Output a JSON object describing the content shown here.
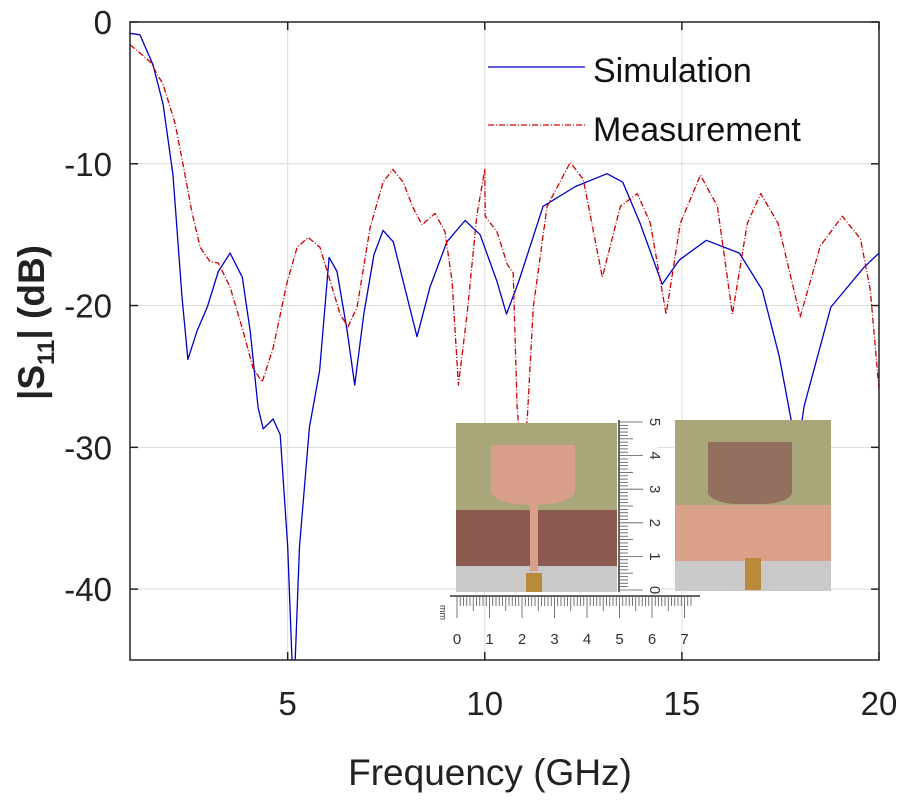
{
  "chart_data": {
    "type": "line",
    "title": "",
    "xlabel": "Frequency (GHz)",
    "ylabel_main": "|S",
    "ylabel_sub": "11",
    "ylabel_tail": "| (dB)",
    "xlim": [
      1,
      20
    ],
    "ylim": [
      -45,
      0
    ],
    "xticks": [
      5,
      10,
      15,
      20
    ],
    "yticks": [
      0,
      -10,
      -20,
      -30,
      -40
    ],
    "grid": true,
    "legend_position": "top-right",
    "series": [
      {
        "name": "Simulation",
        "color": "#0000c8",
        "style": "solid",
        "points": [
          [
            1,
            -0.8
          ],
          [
            1.25,
            -0.9
          ],
          [
            1.58,
            -3
          ],
          [
            1.84,
            -5.8
          ],
          [
            2.09,
            -10.8
          ],
          [
            2.32,
            -19.4
          ],
          [
            2.47,
            -23.8
          ],
          [
            2.7,
            -21.8
          ],
          [
            2.96,
            -20.1
          ],
          [
            3.24,
            -17.6
          ],
          [
            3.54,
            -16.3
          ],
          [
            3.85,
            -18
          ],
          [
            4.05,
            -21.8
          ],
          [
            4.25,
            -27.2
          ],
          [
            4.38,
            -28.7
          ],
          [
            4.63,
            -28
          ],
          [
            4.81,
            -29.1
          ],
          [
            5.0,
            -37
          ],
          [
            5.15,
            -48
          ],
          [
            5.3,
            -37
          ],
          [
            5.55,
            -28.6
          ],
          [
            5.81,
            -24.6
          ],
          [
            6.05,
            -16.6
          ],
          [
            6.25,
            -17.6
          ],
          [
            6.51,
            -21.8
          ],
          [
            6.7,
            -25.6
          ],
          [
            6.93,
            -20.6
          ],
          [
            7.19,
            -16.4
          ],
          [
            7.42,
            -14.7
          ],
          [
            7.68,
            -15.5
          ],
          [
            8.03,
            -19.4
          ],
          [
            8.28,
            -22.2
          ],
          [
            8.61,
            -18.7
          ],
          [
            9.04,
            -15.5
          ],
          [
            9.5,
            -14
          ],
          [
            9.88,
            -15
          ],
          [
            10.31,
            -18.3
          ],
          [
            10.55,
            -20.6
          ],
          [
            10.86,
            -18.3
          ],
          [
            11.48,
            -13
          ],
          [
            12.3,
            -11.6
          ],
          [
            13.1,
            -10.7
          ],
          [
            13.5,
            -11.3
          ],
          [
            13.94,
            -14.2
          ],
          [
            14.5,
            -18.5
          ],
          [
            14.93,
            -16.8
          ],
          [
            15.62,
            -15.4
          ],
          [
            16.46,
            -16.3
          ],
          [
            17.04,
            -18.9
          ],
          [
            17.47,
            -23.6
          ],
          [
            17.8,
            -28.5
          ],
          [
            17.95,
            -30
          ],
          [
            18.1,
            -27.1
          ],
          [
            18.78,
            -20.1
          ],
          [
            19.62,
            -17.3
          ],
          [
            20,
            -16.3
          ]
        ]
      },
      {
        "name": "Measurement",
        "color": "#d00000",
        "style": "dashdot",
        "points": [
          [
            1,
            -1.6
          ],
          [
            1.51,
            -2.8
          ],
          [
            1.84,
            -4.4
          ],
          [
            2.14,
            -7.1
          ],
          [
            2.35,
            -10.1
          ],
          [
            2.57,
            -13.4
          ],
          [
            2.78,
            -15.9
          ],
          [
            3.03,
            -16.9
          ],
          [
            3.24,
            -17
          ],
          [
            3.54,
            -18.7
          ],
          [
            3.87,
            -21.8
          ],
          [
            4.12,
            -24.4
          ],
          [
            4.35,
            -25.4
          ],
          [
            4.63,
            -23
          ],
          [
            4.99,
            -18.3
          ],
          [
            5.24,
            -15.9
          ],
          [
            5.52,
            -15.2
          ],
          [
            5.82,
            -15.9
          ],
          [
            6.08,
            -18.3
          ],
          [
            6.33,
            -20.6
          ],
          [
            6.53,
            -21.5
          ],
          [
            6.76,
            -20.1
          ],
          [
            7.09,
            -14.5
          ],
          [
            7.42,
            -11.3
          ],
          [
            7.67,
            -10.4
          ],
          [
            7.93,
            -11.3
          ],
          [
            8.18,
            -13.1
          ],
          [
            8.41,
            -14.3
          ],
          [
            8.74,
            -13.5
          ],
          [
            8.99,
            -14.8
          ],
          [
            9.17,
            -18.3
          ],
          [
            9.33,
            -25.6
          ],
          [
            9.55,
            -20.6
          ],
          [
            9.8,
            -13.6
          ],
          [
            10.0,
            -10.4
          ],
          [
            10.01,
            -13.7
          ],
          [
            10.31,
            -14.8
          ],
          [
            10.57,
            -17.1
          ],
          [
            10.72,
            -17.7
          ],
          [
            10.82,
            -27.1
          ],
          [
            10.95,
            -32
          ],
          [
            11.08,
            -27.8
          ],
          [
            11.23,
            -20.1
          ],
          [
            11.58,
            -13
          ],
          [
            12.17,
            -9.9
          ],
          [
            12.5,
            -11.1
          ],
          [
            12.98,
            -18
          ],
          [
            13.44,
            -13
          ],
          [
            13.87,
            -12.1
          ],
          [
            14.2,
            -14.2
          ],
          [
            14.6,
            -20.6
          ],
          [
            14.96,
            -14.2
          ],
          [
            15.47,
            -10.8
          ],
          [
            15.9,
            -13
          ],
          [
            16.28,
            -20.6
          ],
          [
            16.66,
            -14.2
          ],
          [
            17.0,
            -12.1
          ],
          [
            17.44,
            -14.2
          ],
          [
            18.0,
            -20.8
          ],
          [
            18.51,
            -15.8
          ],
          [
            19.07,
            -13.7
          ],
          [
            19.53,
            -15.3
          ],
          [
            19.78,
            -18.9
          ],
          [
            20,
            -25.9
          ]
        ]
      }
    ]
  },
  "inset": {
    "ruler_h_labels": [
      "0",
      "1",
      "2",
      "3",
      "4",
      "5",
      "6",
      "7"
    ],
    "ruler_v_labels": [
      "0",
      "1",
      "2",
      "3",
      "4",
      "5"
    ],
    "ruler_unit": "mm"
  }
}
